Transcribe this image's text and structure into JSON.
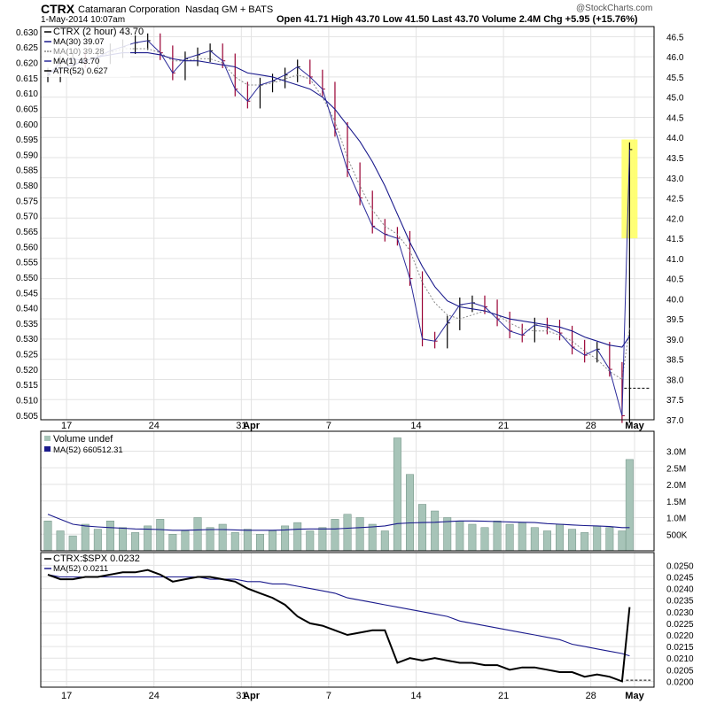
{
  "header": {
    "symbol": "CTRX",
    "company": "Catamaran Corporation",
    "exchange": "Nasdaq GM + BATS",
    "copyright": "@StockCharts.com",
    "datetime": "1-May-2014 10:07am",
    "quote": "Open 41.71  High 43.70  Low 41.50  Last 43.70  Volume 2.4M  Chg +5.95 (+15.76%)"
  },
  "colors": {
    "price_up": "#000000",
    "price_down": "#990033",
    "ma_slow": "#1a1a8c",
    "ma_fast": "#888888",
    "volume_bar": "#a7c4b8",
    "highlight": "#ffff66",
    "ratio_line": "#000000"
  },
  "chart_data": [
    {
      "type": "line",
      "panel": "price",
      "legend": [
        "CTRX (2 hour) 43.70",
        "MA(30) 39.07",
        "MA(10) 39.28",
        "MA(1) 43.70",
        "ATR(52) 0.627"
      ],
      "ylim": [
        37.0,
        46.75
      ],
      "yticks_right": [
        "46.5",
        "46.0",
        "45.5",
        "45.0",
        "44.5",
        "44.0",
        "43.5",
        "43.0",
        "42.5",
        "42.0",
        "41.5",
        "41.0",
        "40.5",
        "40.0",
        "39.5",
        "39.0",
        "38.5",
        "38.0",
        "37.5",
        "37.0"
      ],
      "yticks_right_values": [
        46.5,
        46.0,
        45.5,
        45.0,
        44.5,
        44.0,
        43.5,
        43.0,
        42.5,
        42.0,
        41.5,
        41.0,
        40.5,
        40.0,
        39.5,
        39.0,
        38.5,
        38.0,
        37.5,
        37.0
      ],
      "yticks_left": [
        "0.630",
        "0.625",
        "0.620",
        "0.615",
        "0.610",
        "0.605",
        "0.600",
        "0.595",
        "0.590",
        "0.585",
        "0.580",
        "0.575",
        "0.570",
        "0.565",
        "0.560",
        "0.555",
        "0.550",
        "0.545",
        "0.540",
        "0.535",
        "0.530",
        "0.525",
        "0.520",
        "0.515",
        "0.510",
        "0.505"
      ],
      "yticks_left_values": [
        0.63,
        0.625,
        0.62,
        0.615,
        0.61,
        0.605,
        0.6,
        0.595,
        0.59,
        0.585,
        0.58,
        0.575,
        0.57,
        0.565,
        0.56,
        0.555,
        0.55,
        0.545,
        0.54,
        0.535,
        0.53,
        0.525,
        0.52,
        0.515,
        0.51,
        0.505
      ],
      "atr_lim": [
        0.5035,
        0.6317
      ],
      "xlim": [
        0,
        47
      ],
      "xticks": [
        "17",
        "24",
        "31",
        "Apr",
        "7",
        "14",
        "21",
        "28",
        "May"
      ],
      "xtick_pos": [
        1.5,
        8.5,
        15.5,
        16.3,
        22.5,
        29.5,
        36.5,
        43.5,
        47.0
      ],
      "x": [
        0,
        1,
        2,
        3,
        4,
        5,
        6,
        7,
        8,
        9,
        10,
        11,
        12,
        13,
        14,
        15,
        16,
        17,
        18,
        19,
        20,
        21,
        22,
        23,
        24,
        25,
        26,
        27,
        28,
        29,
        30,
        31,
        32,
        33,
        34,
        35,
        36,
        37,
        38,
        39,
        40,
        41,
        42,
        43,
        44,
        45,
        46,
        46.6
      ],
      "price": [
        45.55,
        45.85,
        45.95,
        45.9,
        46.0,
        46.15,
        46.25,
        46.35,
        46.4,
        46.1,
        45.6,
        45.95,
        46.05,
        46.15,
        45.9,
        45.2,
        44.9,
        45.3,
        45.4,
        45.55,
        45.75,
        45.5,
        45.2,
        44.2,
        43.2,
        42.5,
        41.8,
        41.6,
        41.5,
        40.5,
        39.0,
        38.95,
        39.4,
        39.85,
        39.9,
        39.8,
        39.5,
        39.2,
        39.1,
        39.35,
        39.3,
        39.15,
        38.8,
        38.6,
        38.75,
        38.25,
        37.1,
        43.7
      ],
      "ma30": [
        45.6,
        45.7,
        45.8,
        45.9,
        46.0,
        46.05,
        46.1,
        46.1,
        46.1,
        46.05,
        45.95,
        45.9,
        45.9,
        45.85,
        45.8,
        45.75,
        45.6,
        45.55,
        45.5,
        45.4,
        45.3,
        45.2,
        45.0,
        44.7,
        44.3,
        43.9,
        43.4,
        42.8,
        42.1,
        41.4,
        40.8,
        40.3,
        39.95,
        39.8,
        39.75,
        39.7,
        39.6,
        39.5,
        39.45,
        39.4,
        39.35,
        39.3,
        39.2,
        39.05,
        38.95,
        38.85,
        38.8,
        39.07
      ],
      "ma10": [
        45.6,
        45.7,
        45.8,
        45.9,
        46.0,
        46.1,
        46.2,
        46.2,
        46.2,
        46.1,
        45.9,
        45.9,
        45.95,
        45.95,
        45.85,
        45.5,
        45.3,
        45.3,
        45.35,
        45.45,
        45.55,
        45.45,
        45.0,
        44.4,
        43.5,
        42.8,
        42.2,
        41.8,
        41.6,
        41.2,
        40.4,
        39.9,
        39.6,
        39.5,
        39.6,
        39.7,
        39.6,
        39.4,
        39.25,
        39.2,
        39.2,
        39.1,
        38.95,
        38.7,
        38.5,
        38.2,
        38.0,
        39.28
      ],
      "atr_level": 0.5138
    },
    {
      "type": "bar",
      "panel": "volume",
      "legend": [
        "Volume undef",
        "MA(52) 660512.31"
      ],
      "ylim": [
        0,
        3.6
      ],
      "yticks": [
        "3.0M",
        "2.5M",
        "2.0M",
        "1.5M",
        "1.0M",
        "500K"
      ],
      "ytick_values": [
        3.0,
        2.5,
        2.0,
        1.5,
        1.0,
        0.5
      ],
      "bars": [
        0.9,
        0.6,
        0.45,
        0.8,
        0.65,
        0.9,
        0.7,
        0.55,
        0.75,
        0.95,
        0.5,
        0.6,
        1.0,
        0.7,
        0.8,
        0.55,
        0.65,
        0.5,
        0.6,
        0.75,
        0.85,
        0.6,
        0.7,
        0.95,
        1.1,
        1.0,
        0.8,
        0.6,
        3.4,
        2.3,
        1.4,
        1.2,
        1.0,
        0.9,
        0.8,
        0.7,
        0.9,
        0.8,
        0.85,
        0.7,
        0.6,
        0.8,
        0.65,
        0.55,
        0.75,
        0.7,
        0.6,
        2.75
      ],
      "ma": [
        1.1,
        0.95,
        0.8,
        0.75,
        0.72,
        0.7,
        0.68,
        0.66,
        0.65,
        0.64,
        0.62,
        0.62,
        0.63,
        0.64,
        0.64,
        0.63,
        0.62,
        0.62,
        0.62,
        0.63,
        0.65,
        0.66,
        0.66,
        0.66,
        0.68,
        0.7,
        0.72,
        0.75,
        0.82,
        0.84,
        0.85,
        0.86,
        0.88,
        0.9,
        0.9,
        0.89,
        0.88,
        0.87,
        0.86,
        0.85,
        0.82,
        0.8,
        0.78,
        0.76,
        0.75,
        0.73,
        0.7,
        0.7
      ]
    },
    {
      "type": "line",
      "panel": "ratio",
      "legend": [
        "CTRX:$SPX 0.0232",
        "MA(52) 0.0211"
      ],
      "ylim": [
        0.01975,
        0.02555
      ],
      "yticks": [
        "0.0250",
        "0.0245",
        "0.0240",
        "0.0235",
        "0.0230",
        "0.0225",
        "0.0220",
        "0.0215",
        "0.0210",
        "0.0205",
        "0.0200"
      ],
      "ytick_values": [
        0.025,
        0.0245,
        0.024,
        0.0235,
        0.023,
        0.0225,
        0.022,
        0.0215,
        0.021,
        0.0205,
        0.02
      ],
      "ratio": [
        0.0246,
        0.0244,
        0.0244,
        0.0245,
        0.0245,
        0.0246,
        0.0247,
        0.0247,
        0.0248,
        0.0246,
        0.0243,
        0.0244,
        0.0245,
        0.0245,
        0.0244,
        0.0243,
        0.024,
        0.0238,
        0.0236,
        0.0233,
        0.0228,
        0.0225,
        0.0224,
        0.0222,
        0.022,
        0.0221,
        0.0222,
        0.0222,
        0.0208,
        0.021,
        0.0209,
        0.021,
        0.0209,
        0.0208,
        0.0208,
        0.0207,
        0.0207,
        0.0205,
        0.0206,
        0.0206,
        0.0205,
        0.0204,
        0.0204,
        0.0202,
        0.0203,
        0.0202,
        0.02,
        0.0232
      ],
      "ma": [
        0.0246,
        0.0245,
        0.0245,
        0.0245,
        0.0245,
        0.0245,
        0.0245,
        0.0245,
        0.0245,
        0.0245,
        0.0245,
        0.0245,
        0.0245,
        0.0244,
        0.0244,
        0.0244,
        0.0243,
        0.0243,
        0.0242,
        0.0242,
        0.0241,
        0.024,
        0.0239,
        0.0238,
        0.0236,
        0.0235,
        0.0234,
        0.0233,
        0.0232,
        0.0231,
        0.023,
        0.0229,
        0.0228,
        0.0226,
        0.0225,
        0.0224,
        0.0223,
        0.0222,
        0.0221,
        0.022,
        0.0219,
        0.0218,
        0.0216,
        0.0215,
        0.0214,
        0.0213,
        0.0212,
        0.0211
      ],
      "ref_level": 0.02005
    }
  ]
}
